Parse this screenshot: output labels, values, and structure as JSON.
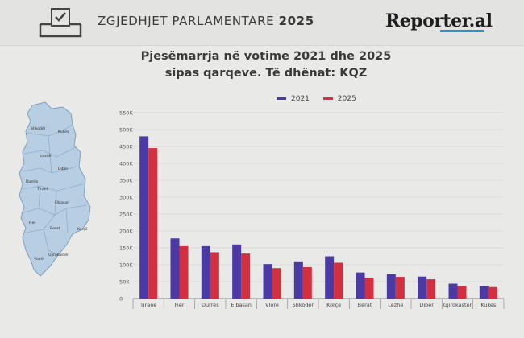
{
  "header": {
    "title_prefix": "ZGJEDHJET PARLAMENTARE",
    "title_year": "2025",
    "brand": "Reporter.al"
  },
  "chart_title_line1": "Pjesëmarrja në votime 2021 dhe 2025",
  "chart_title_line2": "sipas qarqeve. Të dhënat: KQZ",
  "map_labels": [
    "Shkodër",
    "Kukës",
    "Lezhë",
    "Dibër",
    "Durrës",
    "Tiranë",
    "Elbasan",
    "Fier",
    "Berat",
    "Korçë",
    "Gjirokastër",
    "Vlorë"
  ],
  "colors": {
    "series_2021": "#4b3aa3",
    "series_2025": "#d32f3f",
    "map_fill": "#b8cfe3",
    "map_stroke": "#7f9fbe"
  },
  "chart_data": {
    "type": "bar",
    "categories": [
      "Tiranë",
      "Fier",
      "Durrës",
      "Elbasan",
      "Vlorë",
      "Shkodër",
      "Korçë",
      "Berat",
      "Lezhë",
      "Dibër",
      "Gjirokastër",
      "Kukës"
    ],
    "series": [
      {
        "name": "2021",
        "values": [
          480000,
          178000,
          155000,
          160000,
          102000,
          110000,
          125000,
          77000,
          72000,
          65000,
          44000,
          37000
        ]
      },
      {
        "name": "2025",
        "values": [
          445000,
          155000,
          137000,
          133000,
          90000,
          93000,
          106000,
          62000,
          64000,
          57000,
          37000,
          34000
        ]
      }
    ],
    "y_ticks": [
      "0",
      "50K",
      "100K",
      "150K",
      "200K",
      "250K",
      "300K",
      "350K",
      "400K",
      "450K",
      "500K",
      "550K"
    ],
    "ylim": [
      0,
      550000
    ],
    "grid": true,
    "legend_position": "top"
  }
}
